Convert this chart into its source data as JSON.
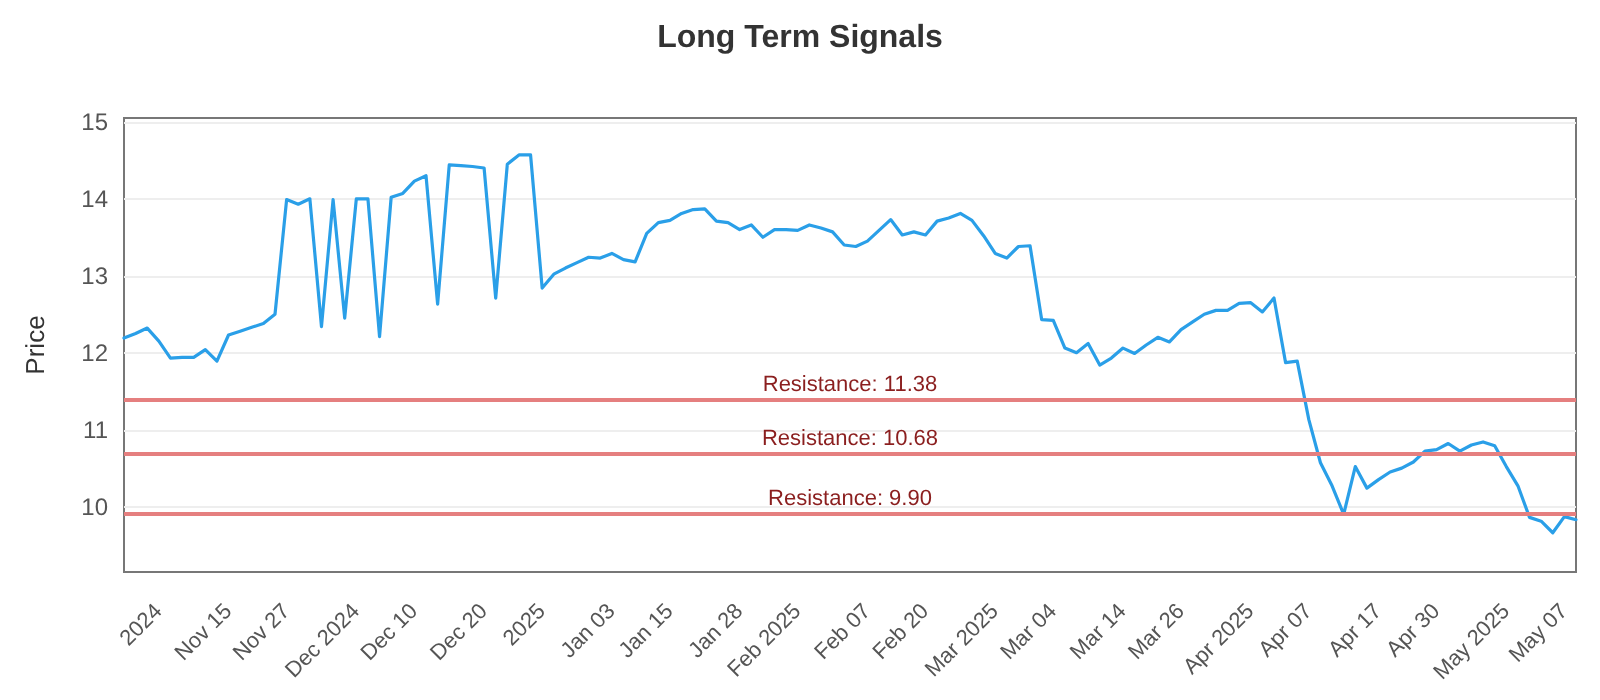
{
  "chart_data": {
    "type": "line",
    "title": "Long Term Signals",
    "ylabel": "Price",
    "categories": [
      null,
      null,
      null,
      "2024",
      null,
      null,
      null,
      null,
      null,
      "Nov 15",
      null,
      null,
      null,
      null,
      "Nov 27",
      null,
      null,
      null,
      null,
      null,
      "Dec 2024",
      null,
      null,
      null,
      null,
      "Dec 10",
      null,
      null,
      null,
      null,
      null,
      "Dec 20",
      null,
      null,
      null,
      null,
      "2025",
      null,
      null,
      null,
      null,
      null,
      "Jan 03",
      null,
      null,
      null,
      null,
      "Jan 15",
      null,
      null,
      null,
      null,
      null,
      "Jan 28",
      null,
      null,
      null,
      null,
      "Feb 2025",
      null,
      null,
      null,
      null,
      null,
      "Feb 07",
      null,
      null,
      null,
      null,
      "Feb 20",
      null,
      null,
      null,
      null,
      null,
      "Mar 2025",
      null,
      null,
      null,
      null,
      "Mar 04",
      null,
      null,
      null,
      null,
      null,
      "Mar 14",
      null,
      null,
      null,
      null,
      "Mar 26",
      null,
      null,
      null,
      null,
      null,
      "Apr 2025",
      null,
      null,
      null,
      null,
      "Apr 07",
      null,
      null,
      null,
      null,
      null,
      "Apr 17",
      null,
      null,
      null,
      null,
      "Apr 30",
      null,
      null,
      null,
      null,
      null,
      "May 2025",
      null,
      null,
      null,
      null,
      "May 07",
      null
    ],
    "series": [
      {
        "color": "#2a9fe8",
        "values": [
          12.19,
          12.25,
          12.32,
          12.15,
          11.93,
          11.94,
          11.94,
          12.04,
          11.89,
          12.23,
          12.28,
          12.33,
          12.38,
          12.5,
          13.99,
          13.93,
          14.0,
          12.34,
          13.99,
          12.45,
          14.0,
          14.0,
          12.21,
          14.02,
          14.07,
          14.23,
          14.3,
          12.63,
          14.44,
          14.43,
          14.42,
          14.4,
          12.71,
          14.45,
          14.57,
          14.57,
          12.84,
          13.02,
          13.1,
          13.17,
          13.24,
          13.23,
          13.29,
          13.21,
          13.18,
          13.55,
          13.69,
          13.72,
          13.81,
          13.86,
          13.87,
          13.71,
          13.69,
          13.6,
          13.66,
          13.5,
          13.6,
          13.6,
          13.59,
          13.66,
          13.62,
          13.57,
          13.4,
          13.38,
          13.45,
          13.59,
          13.73,
          13.53,
          13.57,
          13.53,
          13.71,
          13.75,
          13.81,
          13.72,
          13.52,
          13.29,
          13.23,
          13.38,
          13.39,
          12.43,
          12.42,
          12.06,
          12.0,
          12.12,
          11.84,
          11.93,
          12.06,
          11.99,
          12.1,
          12.2,
          12.14,
          12.3,
          12.4,
          12.5,
          12.55,
          12.55,
          12.64,
          12.65,
          12.53,
          12.71,
          11.87,
          11.89,
          11.13,
          10.57,
          10.27,
          9.9,
          10.52,
          10.24,
          10.35,
          10.45,
          10.5,
          10.58,
          10.72,
          10.74,
          10.82,
          10.72,
          10.8,
          10.84,
          10.79,
          10.52,
          10.27,
          9.86,
          9.81,
          9.66,
          9.87,
          9.83
        ]
      }
    ],
    "ylim": [
      9.15,
      15.05
    ],
    "yticks": [
      10,
      11,
      12,
      13,
      14,
      15
    ],
    "ref_lines": [
      {
        "axis": "y",
        "value": 11.38,
        "label": "Resistance: 11.38",
        "color": "#e57f7f"
      },
      {
        "axis": "y",
        "value": 10.68,
        "label": "Resistance: 10.68",
        "color": "#e57f7f"
      },
      {
        "axis": "y",
        "value": 9.9,
        "label": "Resistance: 9.90",
        "color": "#e57f7f"
      }
    ],
    "grid": "y",
    "marker": "none",
    "line_style": "solid"
  }
}
